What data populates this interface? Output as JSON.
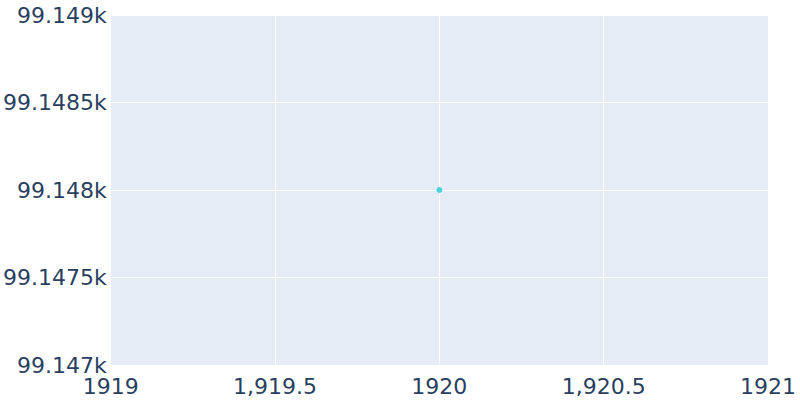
{
  "chart_data": {
    "type": "scatter",
    "x": [
      1920
    ],
    "values": [
      99148
    ],
    "color": "#1ccbd4",
    "xlim": [
      1919,
      1921
    ],
    "xticks": [
      1919,
      {
        "value": 1919.5,
        "label": "1,919.5"
      },
      1920,
      {
        "value": 1920.5,
        "label": "1,920.5"
      },
      1921
    ],
    "ylim": [
      99147,
      99149
    ],
    "yticks": [
      {
        "value": 99147,
        "label": "99.147k"
      },
      {
        "value": 99147.5,
        "label": "99.1475k"
      },
      {
        "value": 99148,
        "label": "99.148k"
      },
      {
        "value": 99148.5,
        "label": "99.1485k"
      },
      {
        "value": 99149,
        "label": "99.149k"
      }
    ],
    "grid": true
  }
}
